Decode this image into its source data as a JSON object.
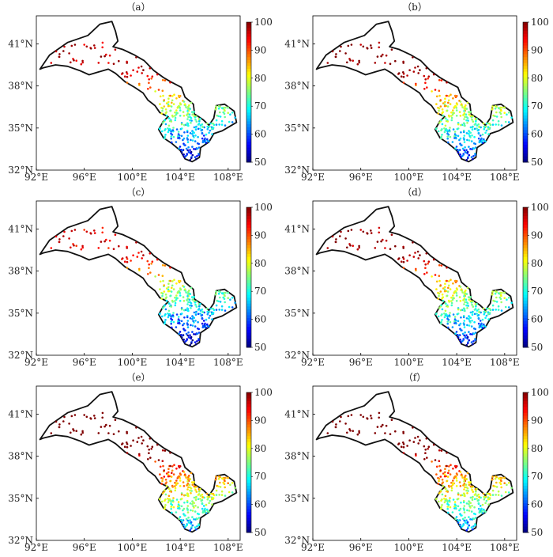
{
  "panels": [
    {
      "label": "（a）"
    },
    {
      "label": "（b）"
    },
    {
      "label": "（c）"
    },
    {
      "label": "（d）"
    },
    {
      "label": "（e）"
    },
    {
      "label": "（f）"
    }
  ],
  "axes": {
    "x_ticks": [
      "92°E",
      "96°E",
      "100°E",
      "104°E",
      "108°E"
    ],
    "y_ticks": [
      "41°N",
      "38°N",
      "35°N",
      "32°N"
    ],
    "x_values": [
      92,
      96,
      100,
      104,
      108
    ],
    "y_values": [
      41,
      38,
      35,
      32
    ],
    "x_range": [
      92,
      109
    ],
    "y_range": [
      32,
      43
    ]
  },
  "colorbar": {
    "ticks": [
      "100",
      "90",
      "80",
      "70",
      "60",
      "50"
    ],
    "values": [
      100,
      90,
      80,
      70,
      60,
      50
    ],
    "range": [
      50,
      100
    ],
    "colormap": "jet"
  },
  "style": {
    "boundary_color": "#111111",
    "panel_bias": [
      0,
      3,
      -2,
      2,
      10,
      9
    ]
  }
}
